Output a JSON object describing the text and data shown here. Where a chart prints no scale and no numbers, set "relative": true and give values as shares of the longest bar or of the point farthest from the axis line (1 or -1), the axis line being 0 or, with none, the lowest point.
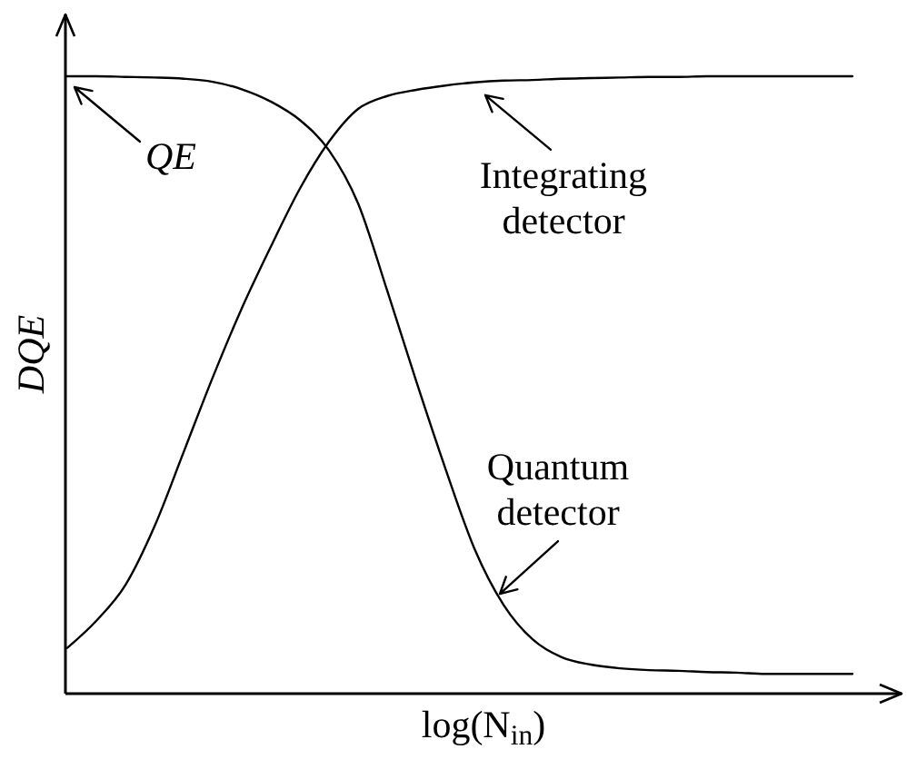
{
  "chart_data": {
    "type": "line",
    "xlabel": "log(N$_{in}$)",
    "ylabel": "DQE",
    "relative": true,
    "categories": [
      null,
      null,
      null,
      null,
      null,
      null,
      null,
      null,
      null,
      null,
      null,
      null,
      null,
      null,
      null,
      null,
      null,
      null,
      null,
      null,
      null,
      null,
      null,
      null,
      null,
      null,
      null,
      null
    ],
    "series": [
      {
        "name": "Quantum detector",
        "color": "#000000",
        "values": [
          1,
          1,
          0.999,
          0.998,
          0.996,
          0.991,
          0.979,
          0.959,
          0.929,
          0.88,
          0.794,
          0.653,
          0.506,
          0.365,
          0.235,
          0.144,
          0.088,
          0.059,
          0.047,
          0.041,
          0.038,
          0.037,
          0.035,
          0.034,
          0.032,
          0.032,
          0.032,
          0.032
        ]
      },
      {
        "name": "Integrating detector",
        "color": "#000000",
        "values": [
          0.074,
          0.118,
          0.176,
          0.271,
          0.391,
          0.512,
          0.624,
          0.724,
          0.818,
          0.894,
          0.947,
          0.968,
          0.978,
          0.985,
          0.99,
          0.993,
          0.994,
          0.996,
          0.997,
          0.998,
          0.999,
          0.999,
          1,
          1,
          1,
          1,
          1,
          1
        ]
      }
    ],
    "annotations": [
      "QE"
    ]
  }
}
